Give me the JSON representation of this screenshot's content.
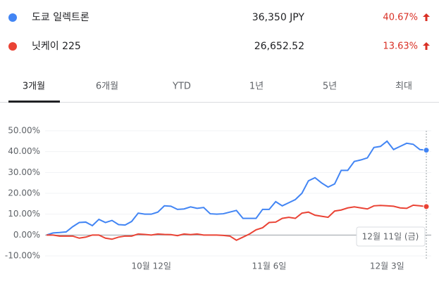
{
  "tabs": [
    "3개월",
    "6개월",
    "YTD",
    "1년",
    "5년",
    "최대"
  ],
  "chart_data": {
    "type": "line",
    "categories": [
      null,
      null,
      null,
      null,
      null,
      null,
      null,
      null,
      null,
      null,
      null,
      null,
      null,
      null,
      null,
      null,
      "10월 12일",
      null,
      null,
      null,
      null,
      null,
      null,
      null,
      null,
      null,
      null,
      null,
      null,
      null,
      null,
      null,
      null,
      null,
      "11월 6일",
      null,
      null,
      null,
      null,
      null,
      null,
      null,
      null,
      null,
      null,
      null,
      null,
      null,
      null,
      null,
      null,
      null,
      "12월 3일",
      null,
      null,
      null,
      null,
      null,
      null
    ],
    "series": [
      {
        "name": "도쿄 일렉트론",
        "price": "36,350 JPY",
        "change": "40.67%",
        "color": "#4285f4",
        "values": [
          0,
          1,
          1.2,
          1.5,
          4,
          6,
          6.2,
          4.5,
          7.5,
          6,
          7,
          5,
          4.8,
          6.5,
          10.5,
          10,
          10,
          11,
          14,
          13.8,
          12.3,
          12.5,
          13.5,
          12.8,
          13.2,
          10.2,
          10,
          10.2,
          11,
          11.8,
          8,
          8,
          8,
          12.3,
          12.3,
          16,
          14,
          15.5,
          17,
          20,
          26,
          27.5,
          25,
          23,
          24.5,
          31,
          31,
          35.3,
          36,
          37,
          42,
          42.5,
          45,
          41,
          42.5,
          44,
          43.5,
          41,
          40.67
        ]
      },
      {
        "name": "닛케이 225",
        "price": "26,652.52",
        "change": "13.63%",
        "color": "#ea4335",
        "values": [
          0,
          0,
          -0.5,
          -0.5,
          -0.5,
          -1.5,
          -1,
          0,
          0,
          -1.5,
          -2,
          -1,
          -0.5,
          -0.5,
          0.5,
          0.3,
          0,
          0.5,
          0.3,
          0.2,
          -0.3,
          0.5,
          0.2,
          0.5,
          0,
          0,
          0,
          -0.2,
          -0.5,
          -2.5,
          -1,
          0.5,
          2.5,
          3.5,
          6,
          6.2,
          8,
          8.5,
          8,
          10.5,
          11,
          9.5,
          9,
          8.5,
          11.5,
          12,
          13,
          13.5,
          13,
          12.5,
          14,
          14.2,
          14,
          13.8,
          13,
          12.8,
          14.3,
          14,
          13.63
        ]
      }
    ],
    "ylim": [
      -10,
      50
    ],
    "yticks": [
      {
        "value": -10,
        "label": "-10.00%"
      },
      {
        "value": 0,
        "label": "0.00%"
      },
      {
        "value": 10,
        "label": "10.00%"
      },
      {
        "value": 20,
        "label": "20.00%"
      },
      {
        "value": 30,
        "label": "30.00%"
      },
      {
        "value": 40,
        "label": "40.00%"
      },
      {
        "value": 50,
        "label": "50.00%"
      }
    ],
    "tooltip": "12월 11일 (금)"
  }
}
